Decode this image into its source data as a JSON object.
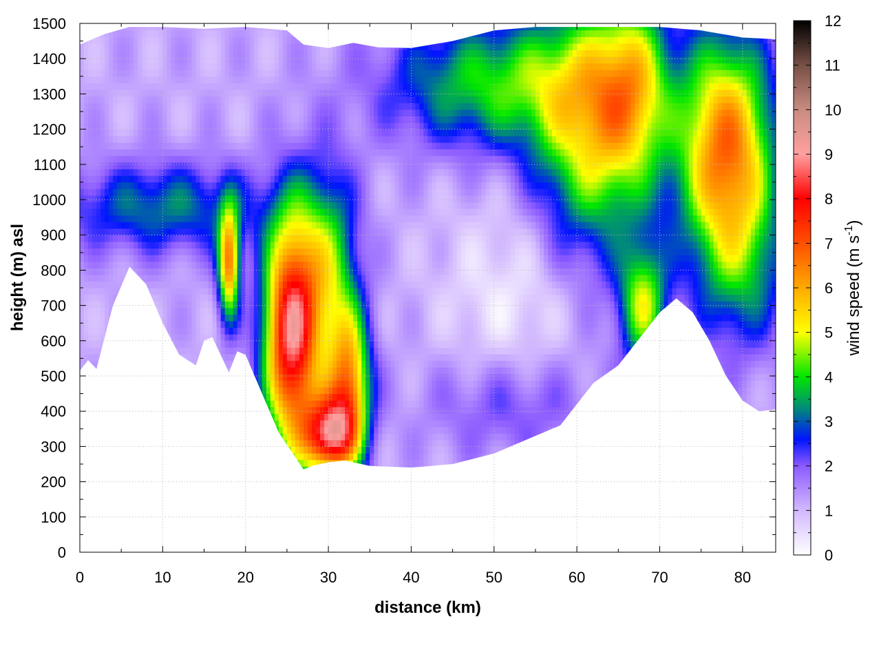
{
  "chart_data": {
    "type": "heatmap",
    "title": "",
    "xlabel": "distance (km)",
    "ylabel": "height (m) asl",
    "xlim": [
      0,
      84
    ],
    "ylim": [
      0,
      1500
    ],
    "xticks": [
      0,
      10,
      20,
      30,
      40,
      50,
      60,
      70,
      80
    ],
    "yticks": [
      0,
      100,
      200,
      300,
      400,
      500,
      600,
      700,
      800,
      900,
      1000,
      1100,
      1200,
      1300,
      1400,
      1500
    ],
    "grid": true,
    "colorbar": {
      "label_main": "wind speed (m s",
      "label_sup": "-1",
      "label_end": ")",
      "range": [
        0,
        12
      ],
      "ticks": [
        0,
        1,
        2,
        3,
        4,
        5,
        6,
        7,
        8,
        9,
        10,
        11,
        12
      ],
      "colors": [
        {
          "v": 0,
          "c": "#ffffff"
        },
        {
          "v": 1,
          "c": "#d2b9ff"
        },
        {
          "v": 2,
          "c": "#8c5aff"
        },
        {
          "v": 2.6,
          "c": "#0014ff"
        },
        {
          "v": 3.3,
          "c": "#008c78"
        },
        {
          "v": 4,
          "c": "#00e600"
        },
        {
          "v": 5,
          "c": "#ffff00"
        },
        {
          "v": 6,
          "c": "#ffaa00"
        },
        {
          "v": 7,
          "c": "#ff5000"
        },
        {
          "v": 8,
          "c": "#ff0000"
        },
        {
          "v": 9,
          "c": "#ffa0a0"
        },
        {
          "v": 10,
          "c": "#c88c82"
        },
        {
          "v": 11,
          "c": "#785046"
        },
        {
          "v": 12,
          "c": "#000000"
        }
      ]
    },
    "terrain_bottom": [
      [
        0,
        515
      ],
      [
        1,
        545
      ],
      [
        2,
        520
      ],
      [
        4,
        700
      ],
      [
        6,
        810
      ],
      [
        8,
        760
      ],
      [
        10,
        650
      ],
      [
        12,
        560
      ],
      [
        14,
        530
      ],
      [
        15,
        600
      ],
      [
        16,
        610
      ],
      [
        17,
        560
      ],
      [
        18,
        510
      ],
      [
        19,
        570
      ],
      [
        20,
        560
      ],
      [
        22,
        450
      ],
      [
        24,
        340
      ],
      [
        26,
        270
      ],
      [
        27,
        235
      ],
      [
        28,
        245
      ],
      [
        30,
        255
      ],
      [
        32,
        260
      ],
      [
        35,
        245
      ],
      [
        40,
        240
      ],
      [
        45,
        250
      ],
      [
        50,
        280
      ],
      [
        55,
        330
      ],
      [
        58,
        360
      ],
      [
        60,
        420
      ],
      [
        62,
        480
      ],
      [
        65,
        530
      ],
      [
        68,
        620
      ],
      [
        70,
        680
      ],
      [
        72,
        720
      ],
      [
        74,
        680
      ],
      [
        76,
        600
      ],
      [
        78,
        500
      ],
      [
        80,
        430
      ],
      [
        82,
        400
      ],
      [
        84,
        405
      ]
    ],
    "data_top": [
      [
        0,
        1440
      ],
      [
        3,
        1470
      ],
      [
        6,
        1490
      ],
      [
        10,
        1490
      ],
      [
        15,
        1485
      ],
      [
        20,
        1490
      ],
      [
        25,
        1480
      ],
      [
        27,
        1440
      ],
      [
        30,
        1430
      ],
      [
        33,
        1445
      ],
      [
        36,
        1432
      ],
      [
        40,
        1430
      ],
      [
        45,
        1450
      ],
      [
        50,
        1480
      ],
      [
        55,
        1490
      ],
      [
        60,
        1490
      ],
      [
        65,
        1490
      ],
      [
        70,
        1490
      ],
      [
        75,
        1480
      ],
      [
        80,
        1460
      ],
      [
        84,
        1455
      ]
    ],
    "field": {
      "background": 1.2,
      "features": [
        {
          "name": "low-jet-core",
          "x": 25.5,
          "y": 620,
          "sx": 2.3,
          "sy": 230,
          "peak": 7.4
        },
        {
          "name": "low-jet-lower",
          "x": 30,
          "y": 330,
          "sx": 2.2,
          "sy": 80,
          "peak": 6.2
        },
        {
          "name": "low-jet-right",
          "x": 32.5,
          "y": 470,
          "sx": 1.8,
          "sy": 150,
          "peak": 4.8
        },
        {
          "name": "jet-side-band",
          "x": 30,
          "y": 800,
          "sx": 2.5,
          "sy": 200,
          "peak": 3.0
        },
        {
          "name": "small-jet",
          "x": 18,
          "y": 820,
          "sx": 0.9,
          "sy": 110,
          "peak": 5.2
        },
        {
          "name": "mid-level-band",
          "x": 10,
          "y": 980,
          "sx": 9,
          "sy": 90,
          "peak": 2.0
        },
        {
          "name": "upper-jet-left",
          "x": 50,
          "y": 1330,
          "sx": 9,
          "sy": 130,
          "peak": 2.8
        },
        {
          "name": "upper-jet-mid",
          "x": 62,
          "y": 1200,
          "sx": 5,
          "sy": 250,
          "peak": 3.8
        },
        {
          "name": "upper-jet-right",
          "x": 67,
          "y": 1330,
          "sx": 3,
          "sy": 180,
          "peak": 2.6
        },
        {
          "name": "slope-flow",
          "x": 68,
          "y": 700,
          "sx": 2,
          "sy": 120,
          "peak": 3.4
        },
        {
          "name": "right-max",
          "x": 78,
          "y": 1150,
          "sx": 4,
          "sy": 220,
          "peak": 5.4
        },
        {
          "name": "right-mid",
          "x": 80,
          "y": 800,
          "sx": 4,
          "sy": 170,
          "peak": 1.8
        },
        {
          "name": "valley-floor",
          "x": 52,
          "y": 420,
          "sx": 7,
          "sy": 110,
          "peak": 1.2
        },
        {
          "name": "calm-pocket",
          "x": 52,
          "y": 700,
          "sx": 6,
          "sy": 220,
          "peak": -0.9
        }
      ]
    }
  }
}
